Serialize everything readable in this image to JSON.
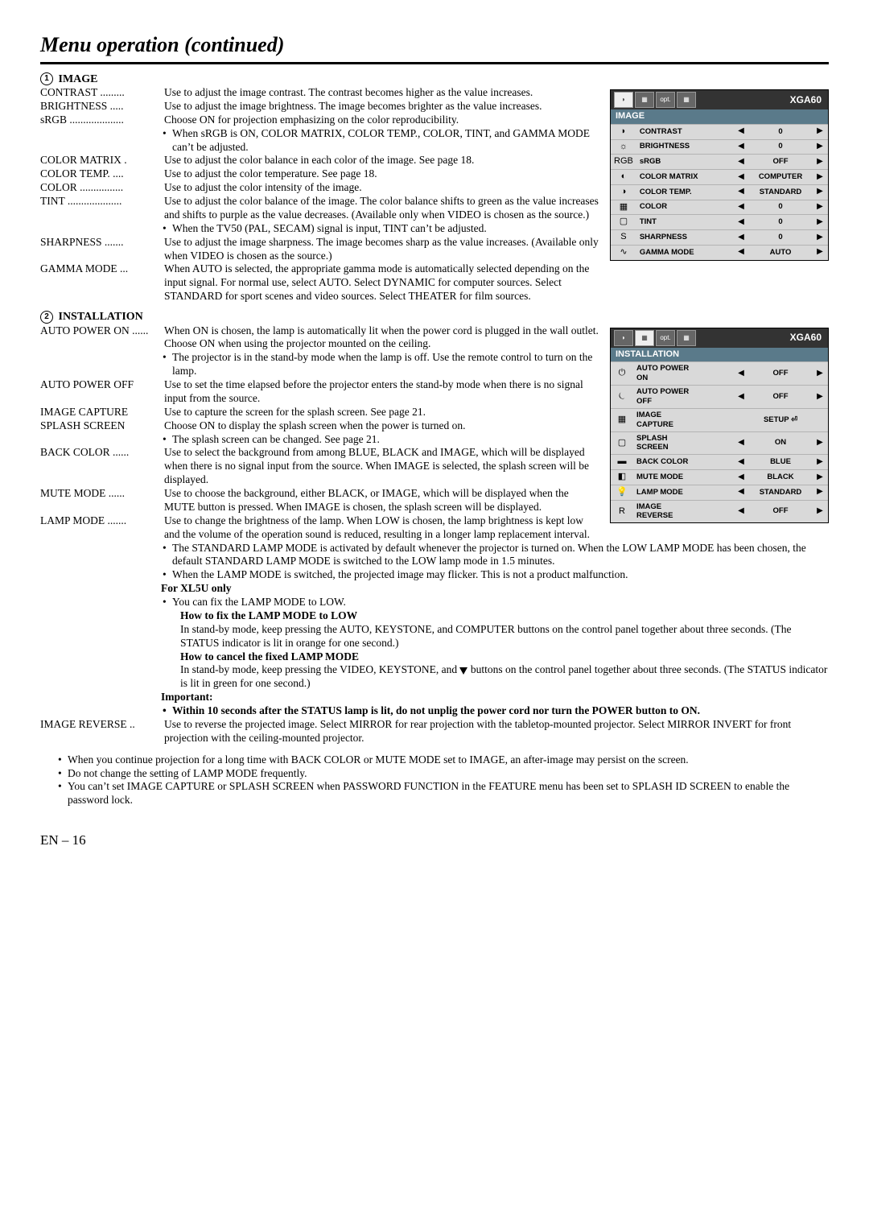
{
  "page_title": "Menu operation (continued)",
  "footer_text": "EN – 16",
  "section1": {
    "number": "1",
    "title": "IMAGE",
    "items": [
      {
        "label": "CONTRAST .........",
        "desc": "Use to adjust the image contrast. The contrast becomes higher as the value increases."
      },
      {
        "label": "BRIGHTNESS .....",
        "desc": "Use to adjust the image brightness. The image becomes brighter as the value increases."
      },
      {
        "label": "sRGB ....................",
        "desc": "Choose ON for projection emphasizing on the color reproducibility."
      },
      {
        "bullet": "When sRGB is ON, COLOR MATRIX, COLOR TEMP., COLOR, TINT, and GAMMA MODE can’t be adjusted."
      },
      {
        "label": "COLOR MATRIX  .",
        "desc": "Use to adjust the color balance in each color of the image. See page 18."
      },
      {
        "label": "COLOR TEMP.  ....",
        "desc": "Use to adjust the color temperature. See page 18."
      },
      {
        "label": "COLOR  ................",
        "desc": "Use to adjust the color intensity of the image."
      },
      {
        "label": "TINT  ....................",
        "desc": "Use to adjust the color balance of the image. The color balance shifts to green as the value increases and shifts to purple as the value decreases. (Available only when VIDEO is chosen as the source.)"
      },
      {
        "bullet": "When the TV50 (PAL, SECAM) signal is input, TINT can’t be adjusted."
      },
      {
        "label": "SHARPNESS .......",
        "desc": "Use to adjust the image sharpness. The image becomes sharp as the value increases. (Available only when VIDEO is chosen as the source.)"
      },
      {
        "label": "GAMMA MODE ...",
        "desc": "When AUTO is selected, the appropriate gamma mode is automatically selected depending on the input signal. For normal use, select  AUTO. Select DYNAMIC for computer sources. Select STANDARD for sport scenes and video sources. Select THEATER for film sources."
      }
    ]
  },
  "menu1": {
    "res": "XGA60",
    "header": "IMAGE",
    "rows": [
      {
        "icon": "◗",
        "name": "CONTRAST",
        "val": "0"
      },
      {
        "icon": "☼",
        "name": "BRIGHTNESS",
        "val": "0"
      },
      {
        "icon": "RGB",
        "name": "sRGB",
        "val": "OFF"
      },
      {
        "icon": "◐",
        "name": "COLOR MATRIX",
        "val": "COMPUTER"
      },
      {
        "icon": "◑",
        "name": "COLOR TEMP.",
        "val": "STANDARD"
      },
      {
        "icon": "▦",
        "name": "COLOR",
        "val": "0"
      },
      {
        "icon": "▢",
        "name": "TINT",
        "val": "0"
      },
      {
        "icon": "S",
        "name": "SHARPNESS",
        "val": "0"
      },
      {
        "icon": "∿",
        "name": "GAMMA MODE",
        "val": "AUTO"
      }
    ]
  },
  "section2": {
    "number": "2",
    "title": "INSTALLATION",
    "items": [
      {
        "label": "AUTO POWER ON ......",
        "desc": "When ON is chosen, the lamp is automatically lit when the power cord is plugged in the wall outlet. Choose ON when using the projector mounted on the ceiling."
      },
      {
        "bullet": "The projector is in the stand-by mode when the lamp is off.  Use the remote control to turn on the lamp."
      },
      {
        "label": "AUTO POWER OFF",
        "desc": "    Use to set the time elapsed before the projector enters the stand-by mode when there is no signal input from the source."
      },
      {
        "label": "IMAGE CAPTURE",
        "desc": "Use to capture the screen for the splash screen. See page 21."
      },
      {
        "label": "SPLASH SCREEN",
        "desc": "Choose ON to display the splash screen when the power is turned on."
      },
      {
        "bullet": "The splash screen can be changed. See page 21."
      },
      {
        "label": "BACK COLOR ......",
        "desc": "Use to select the background from among BLUE, BLACK and IMAGE, which will be displayed when there is no signal input from the source. When IMAGE is selected, the splash screen will be displayed."
      },
      {
        "label": "MUTE MODE  ......",
        "desc": "Use to choose the background, either BLACK, or IMAGE, which will be displayed when the MUTE button is pressed. When IMAGE is chosen, the splash screen will be displayed."
      },
      {
        "label": "LAMP MODE .......",
        "desc": "Use to change the brightness of the lamp. When LOW is chosen, the lamp brightness is kept low and the volume of the operation sound is reduced, resulting in a longer lamp replacement interval."
      }
    ],
    "lamp_bullets": [
      "The STANDARD LAMP MODE is activated by default whenever the projector is turned on. When the LOW LAMP MODE has been chosen, the default STANDARD LAMP MODE is switched to the LOW lamp mode in 1.5 minutes.",
      "When the LAMP MODE is switched, the projected image may flicker. This is not a product malfunction."
    ],
    "xl5u_head": "For XL5U only",
    "xl5u_bullet": "You can fix the LAMP MODE to LOW.",
    "howfix_head": "How to fix the LAMP MODE to LOW",
    "howfix_text": "In stand-by mode, keep pressing the AUTO, KEYSTONE, and COMPUTER buttons on the  control panel together about three seconds. (The STATUS indicator is lit in orange for one second.)",
    "howcancel_head": "How to cancel the fixed LAMP MODE",
    "howcancel_pre": "In stand-by mode, keep pressing the VIDEO, KEYSTONE, and ",
    "howcancel_post": " buttons on the control panel together about three seconds. (The STATUS indicator is lit in green for one second.)",
    "important_head": "Important:",
    "important_bullet": "Within 10 seconds after the STATUS lamp is lit, do not unplig the power cord nor turn the POWER button to ON.",
    "image_reverse_label": "IMAGE REVERSE  ..",
    "image_reverse_desc": "Use to reverse the projected image. Select MIRROR for rear projection with the tabletop-mounted projector. Select MIRROR INVERT for front projection with the ceiling-mounted projector.",
    "notes": [
      "When you continue projection for a long time with BACK COLOR or MUTE MODE set to IMAGE, an after-image may persist on the screen.",
      "Do not change the setting of LAMP MODE frequently.",
      "You can’t set IMAGE CAPTURE or SPLASH SCREEN when PASSWORD FUNCTION in the FEATURE menu has been set to SPLASH ID SCREEN to enable the password lock."
    ]
  },
  "menu2": {
    "res": "XGA60",
    "header": "INSTALLATION",
    "rows": [
      {
        "icon": "⏻",
        "name": "AUTO POWER\nON",
        "val": "OFF",
        "arrows": true
      },
      {
        "icon": "⏾",
        "name": "AUTO POWER\nOFF",
        "val": "OFF",
        "arrows": true
      },
      {
        "icon": "▦",
        "name": "IMAGE\nCAPTURE",
        "val": "SETUP ⏎",
        "arrows": false
      },
      {
        "icon": "▢",
        "name": "SPLASH\nSCREEN",
        "val": "ON",
        "arrows": true
      },
      {
        "icon": "▬",
        "name": "BACK COLOR",
        "val": "BLUE",
        "arrows": true
      },
      {
        "icon": "◧",
        "name": "MUTE MODE",
        "val": "BLACK",
        "arrows": true
      },
      {
        "icon": "💡",
        "name": "LAMP MODE",
        "val": "STANDARD",
        "arrows": true
      },
      {
        "icon": "R",
        "name": "IMAGE\nREVERSE",
        "val": "OFF",
        "arrows": true
      }
    ]
  }
}
